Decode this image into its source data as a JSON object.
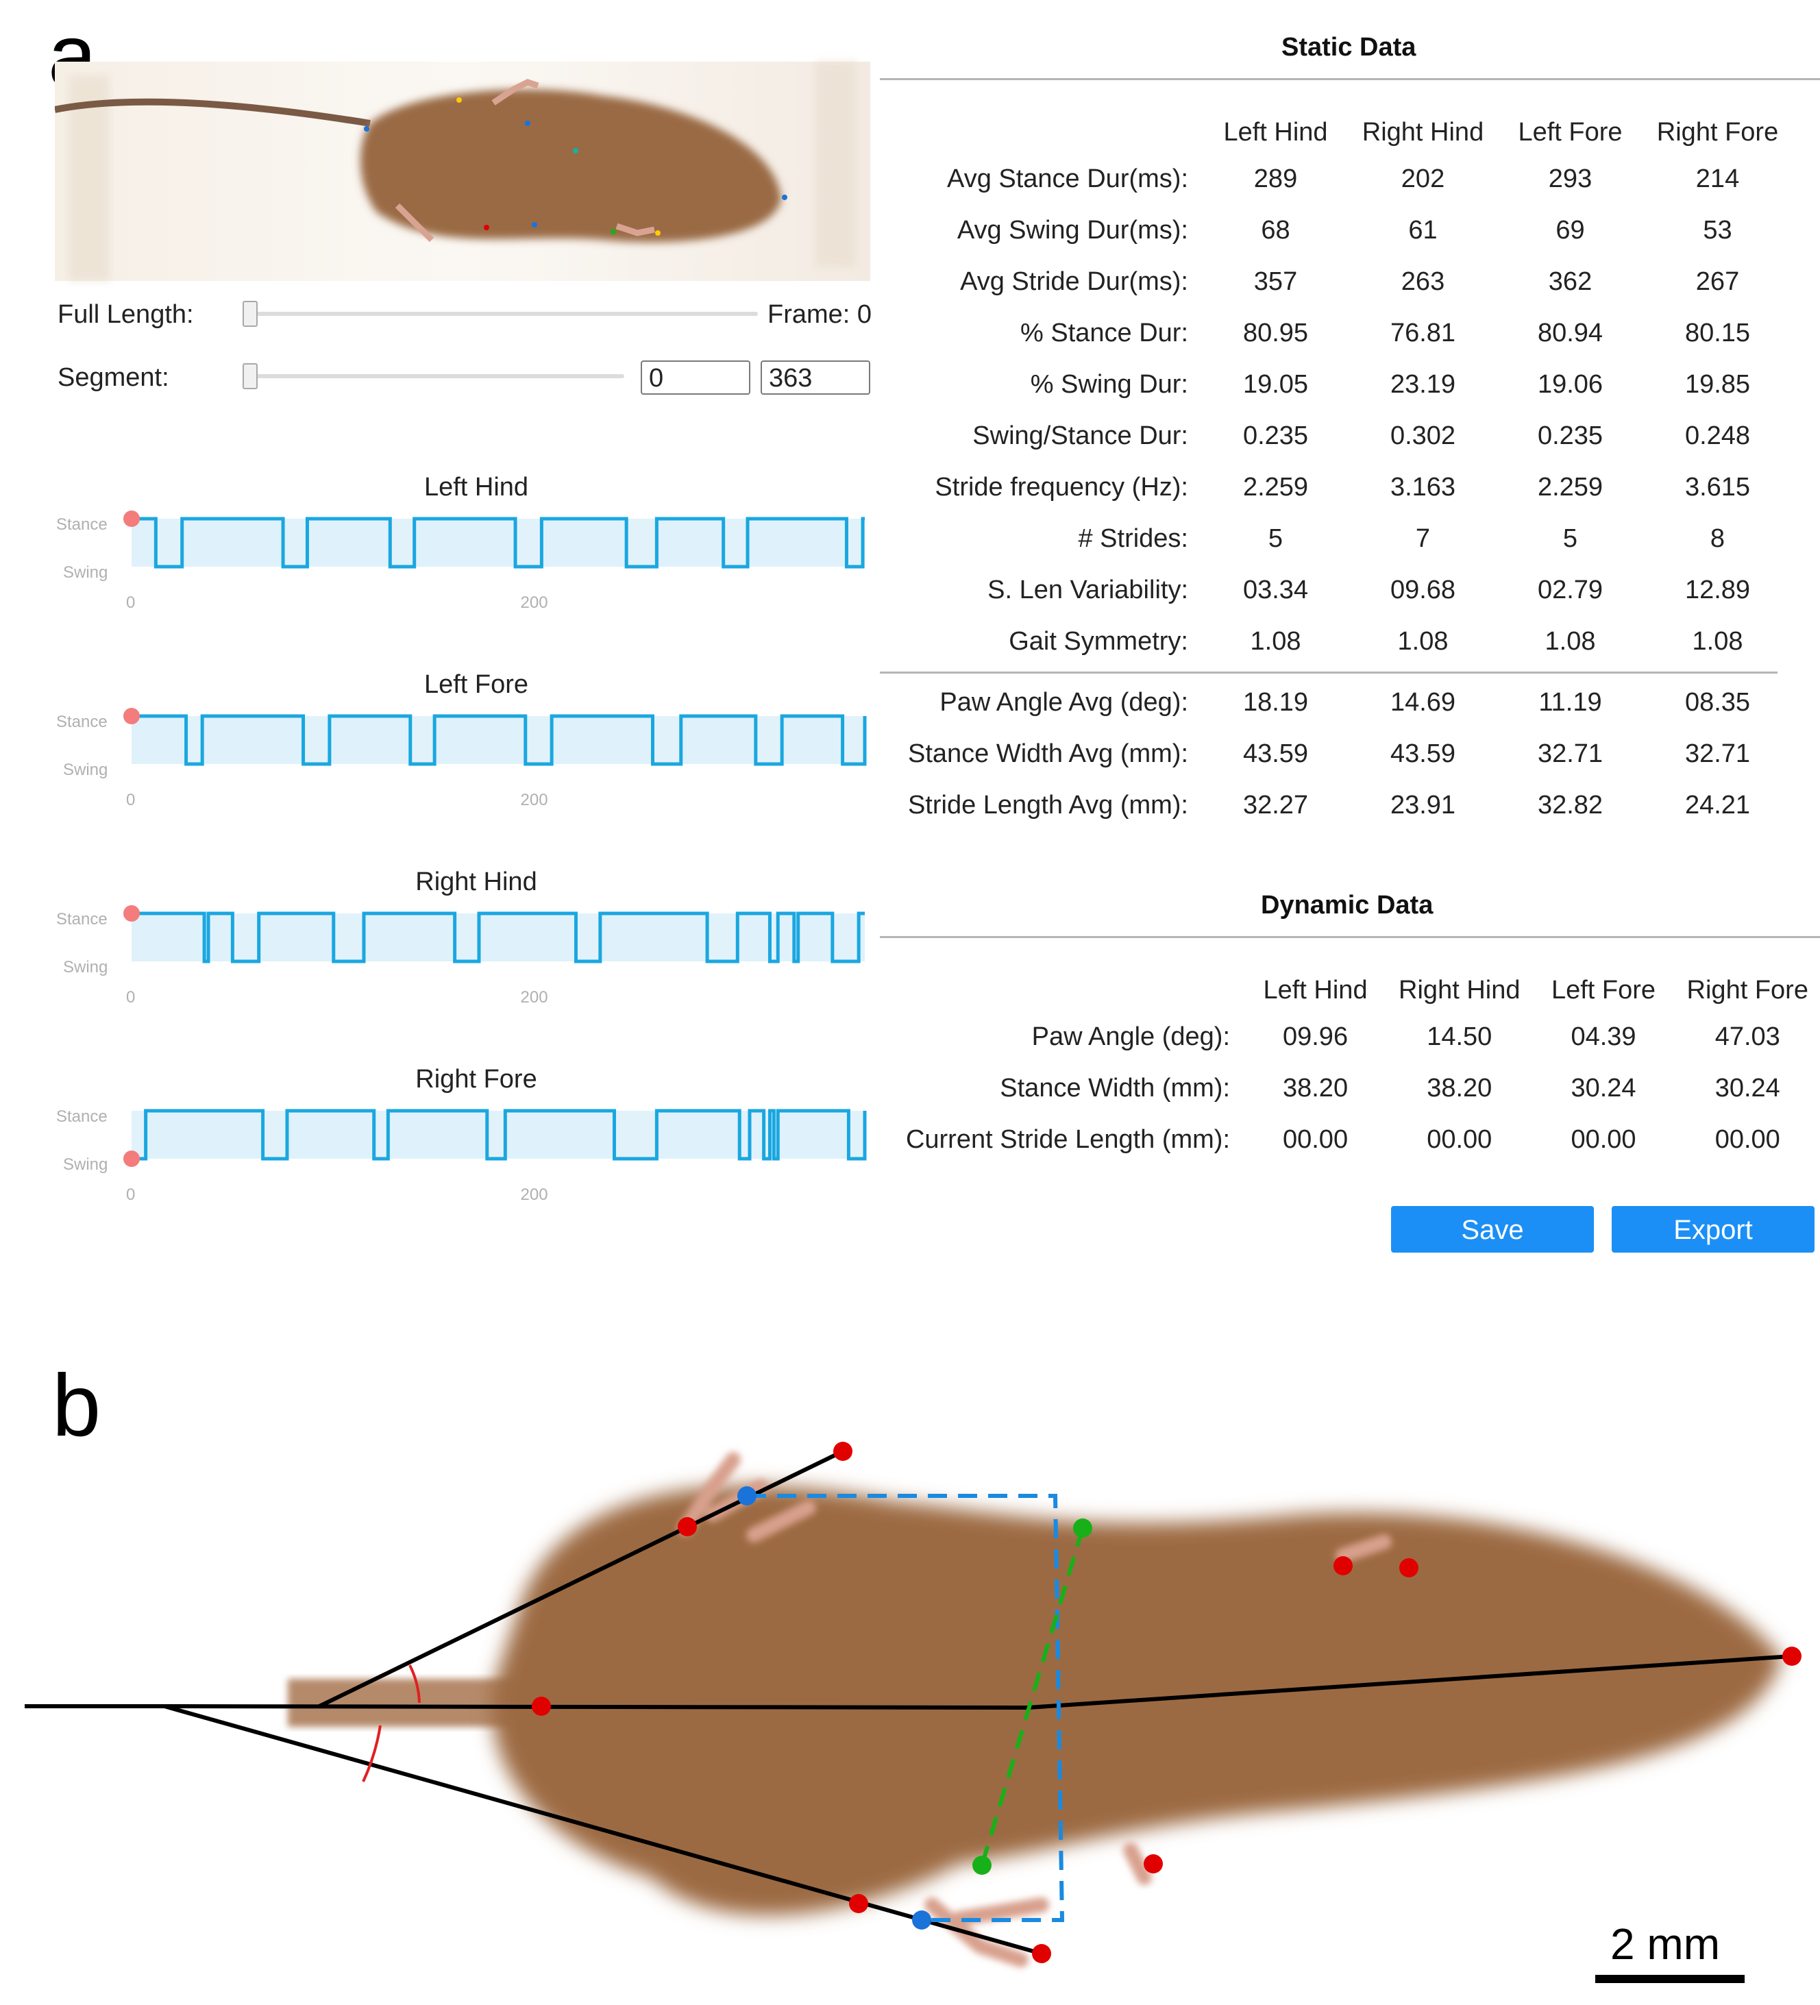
{
  "panels": {
    "a": "a",
    "b": "b"
  },
  "controls": {
    "full_length_label": "Full Length:",
    "frame_label": "Frame: 0",
    "segment_label": "Segment:",
    "segment_start": "0",
    "segment_end": "363"
  },
  "gait_charts": {
    "stance_label": "Stance",
    "swing_label": "Swing",
    "x_ticks": [
      "0",
      "200"
    ],
    "color": "#1aa7e0",
    "fill": "#dff1fb",
    "marker_color": "#f47c7c",
    "charts": [
      {
        "title": "Left Hind",
        "swings": [
          [
            12,
            25
          ],
          [
            75,
            87
          ],
          [
            128,
            140
          ],
          [
            190,
            203
          ],
          [
            245,
            260
          ],
          [
            293,
            305
          ],
          [
            354,
            362
          ]
        ]
      },
      {
        "title": "Left Fore",
        "swings": [
          [
            27,
            35
          ],
          [
            85,
            98
          ],
          [
            138,
            150
          ],
          [
            195,
            208
          ],
          [
            258,
            272
          ],
          [
            309,
            322
          ],
          [
            352,
            363
          ]
        ]
      },
      {
        "title": "Right Hind",
        "swings": [
          [
            36,
            38
          ],
          [
            50,
            63
          ],
          [
            100,
            115
          ],
          [
            160,
            172
          ],
          [
            220,
            232
          ],
          [
            285,
            300
          ],
          [
            316,
            320
          ],
          [
            328,
            330
          ],
          [
            347,
            360
          ]
        ]
      },
      {
        "title": "Right Fore",
        "swings": [
          [
            0,
            7
          ],
          [
            65,
            77
          ],
          [
            120,
            127
          ],
          [
            176,
            185
          ],
          [
            239,
            260
          ],
          [
            301,
            306
          ],
          [
            313,
            316
          ],
          [
            318,
            320
          ],
          [
            355,
            363
          ]
        ]
      }
    ]
  },
  "static": {
    "title": "Static Data",
    "columns": [
      "Left Hind",
      "Right Hind",
      "Left Fore",
      "Right Fore"
    ],
    "rows": [
      {
        "label": "Avg Stance Dur(ms):",
        "values": [
          "289",
          "202",
          "293",
          "214"
        ]
      },
      {
        "label": "Avg Swing Dur(ms):",
        "values": [
          "68",
          "61",
          "69",
          "53"
        ]
      },
      {
        "label": "Avg Stride Dur(ms):",
        "values": [
          "357",
          "263",
          "362",
          "267"
        ]
      },
      {
        "label": "% Stance Dur:",
        "values": [
          "80.95",
          "76.81",
          "80.94",
          "80.15"
        ]
      },
      {
        "label": "% Swing Dur:",
        "values": [
          "19.05",
          "23.19",
          "19.06",
          "19.85"
        ]
      },
      {
        "label": "Swing/Stance Dur:",
        "values": [
          "0.235",
          "0.302",
          "0.235",
          "0.248"
        ]
      },
      {
        "label": "Stride frequency (Hz):",
        "values": [
          "2.259",
          "3.163",
          "2.259",
          "3.615"
        ]
      },
      {
        "label": "# Strides:",
        "values": [
          "5",
          "7",
          "5",
          "8"
        ]
      },
      {
        "label": "S. Len Variability:",
        "values": [
          "03.34",
          "09.68",
          "02.79",
          "12.89"
        ]
      },
      {
        "label": "Gait Symmetry:",
        "values": [
          "1.08",
          "1.08",
          "1.08",
          "1.08"
        ]
      }
    ],
    "rows2": [
      {
        "label": "Paw Angle Avg (deg):",
        "values": [
          "18.19",
          "14.69",
          "11.19",
          "08.35"
        ]
      },
      {
        "label": "Stance Width Avg (mm):",
        "values": [
          "43.59",
          "43.59",
          "32.71",
          "32.71"
        ]
      },
      {
        "label": "Stride Length Avg (mm):",
        "values": [
          "32.27",
          "23.91",
          "32.82",
          "24.21"
        ]
      }
    ]
  },
  "dynamic": {
    "title": "Dynamic Data",
    "columns": [
      "Left Hind",
      "Right Hind",
      "Left Fore",
      "Right Fore"
    ],
    "rows": [
      {
        "label": "Paw Angle (deg):",
        "values": [
          "09.96",
          "14.50",
          "04.39",
          "47.03"
        ]
      },
      {
        "label": "Stance Width (mm):",
        "values": [
          "38.20",
          "38.20",
          "30.24",
          "30.24"
        ]
      },
      {
        "label": "Current Stride Length (mm):",
        "values": [
          "00.00",
          "00.00",
          "00.00",
          "00.00"
        ]
      }
    ]
  },
  "buttons": {
    "save": "Save",
    "export": "Export"
  },
  "scale": {
    "label": "2 mm"
  },
  "colors": {
    "accent": "#1b8ff5",
    "mouse": "#8a5a35",
    "marker_red": "#e10000",
    "marker_blue": "#1a73d9",
    "marker_green": "#18b018"
  }
}
